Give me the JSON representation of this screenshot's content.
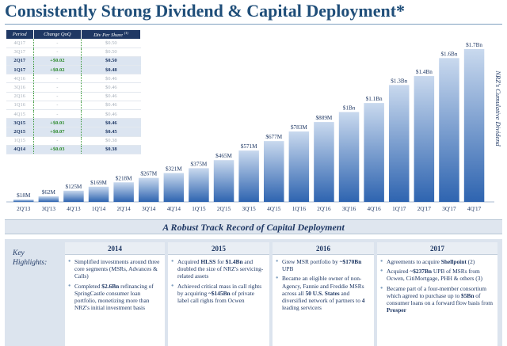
{
  "title": "Consistently Strong Dividend & Capital Deployment*",
  "dividend_table": {
    "headers": [
      "Period",
      "Change QoQ",
      "Div Per Share"
    ],
    "header_sup": "(1)",
    "rows": [
      {
        "period": "4Q17",
        "change": "-",
        "div": "$0.50",
        "highlight": false
      },
      {
        "period": "3Q17",
        "change": "-",
        "div": "$0.50",
        "highlight": false
      },
      {
        "period": "2Q17",
        "change": "+$0.02",
        "div": "$0.50",
        "highlight": true
      },
      {
        "period": "1Q17",
        "change": "+$0.02",
        "div": "$0.48",
        "highlight": true
      },
      {
        "period": "4Q16",
        "change": "-",
        "div": "$0.46",
        "highlight": false
      },
      {
        "period": "3Q16",
        "change": "-",
        "div": "$0.46",
        "highlight": false
      },
      {
        "period": "2Q16",
        "change": "-",
        "div": "$0.46",
        "highlight": false
      },
      {
        "period": "1Q16",
        "change": "-",
        "div": "$0.46",
        "highlight": false
      },
      {
        "period": "4Q15",
        "change": "-",
        "div": "$0.46",
        "highlight": false
      },
      {
        "period": "3Q15",
        "change": "+$0.01",
        "div": "$0.46",
        "highlight": true
      },
      {
        "period": "2Q15",
        "change": "+$0.07",
        "div": "$0.45",
        "highlight": true
      },
      {
        "period": "1Q15",
        "change": "-",
        "div": "$0.38",
        "highlight": false
      },
      {
        "period": "4Q14",
        "change": "+$0.03",
        "div": "$0.38",
        "highlight": true
      }
    ]
  },
  "chart_data": {
    "type": "bar",
    "categories": [
      "2Q'13",
      "3Q'13",
      "4Q'13",
      "1Q'14",
      "2Q'14",
      "3Q'14",
      "4Q'14",
      "1Q'15",
      "2Q'15",
      "3Q'15",
      "4Q'15",
      "1Q'16",
      "2Q'16",
      "3Q'16",
      "4Q'16",
      "1Q'17",
      "2Q'17",
      "3Q'17",
      "4Q'17"
    ],
    "values": [
      18,
      62,
      125,
      169,
      218,
      267,
      321,
      375,
      465,
      571,
      677,
      783,
      889,
      1000,
      1100,
      1300,
      1400,
      1600,
      1700
    ],
    "data_labels": [
      "$18M",
      "$62M",
      "$125M",
      "$169M",
      "$218M",
      "$267M",
      "$321M",
      "$375M",
      "$465M",
      "$571M",
      "$677M",
      "$783M",
      "$889M",
      "$1Bn",
      "$1.1Bn",
      "$1.3Bn",
      "$1.4Bn",
      "$1.6Bn",
      "$1.7Bn"
    ],
    "ylabel": "NRZ's Cumulative Dividend",
    "ylim": [
      0,
      1700
    ],
    "colors": {
      "bar_top": "#c9d9ee",
      "bar_bottom": "#2e64b0",
      "label": "#1f3864"
    }
  },
  "subtitle": "A Robust Track Record of Capital Deployment",
  "highlights": {
    "label_line1": "Key",
    "label_line2": "Highlights:",
    "columns": [
      {
        "year": "2014",
        "bullets": [
          [
            {
              "t": "Simplified investments around three core segments (MSRs, Advances & Calls)",
              "b": false
            }
          ],
          [
            {
              "t": "Completed ",
              "b": false
            },
            {
              "t": "$2.6Bn",
              "b": true
            },
            {
              "t": " refinancing of SpringCastle consumer loan portfolio, monetizing more than NRZ's initial investment basis",
              "b": false
            }
          ]
        ]
      },
      {
        "year": "2015",
        "bullets": [
          [
            {
              "t": "Acquired ",
              "b": false
            },
            {
              "t": "HLSS",
              "b": true
            },
            {
              "t": " for ",
              "b": false
            },
            {
              "t": "$1.4Bn",
              "b": true
            },
            {
              "t": " and doubled the size of NRZ's servicing-related assets",
              "b": false
            }
          ],
          [
            {
              "t": "Achieved critical mass in call rights by acquiring ",
              "b": false
            },
            {
              "t": "~$145Bn",
              "b": true
            },
            {
              "t": " of private label call rights from Ocwen",
              "b": false
            }
          ]
        ]
      },
      {
        "year": "2016",
        "bullets": [
          [
            {
              "t": "Grew MSR portfolio by ",
              "b": false
            },
            {
              "t": "~$170Bn",
              "b": true
            },
            {
              "t": " UPB",
              "b": false
            }
          ],
          [
            {
              "t": "Became an eligible owner of non-Agency, Fannie and Freddie MSRs across all ",
              "b": false
            },
            {
              "t": "50 U.S. States",
              "b": true
            },
            {
              "t": " and diversified network of partners to ",
              "b": false
            },
            {
              "t": "4",
              "b": true
            },
            {
              "t": " leading servicers",
              "b": false
            }
          ]
        ]
      },
      {
        "year": "2017",
        "bullets": [
          [
            {
              "t": "Agreements to acquire ",
              "b": false
            },
            {
              "t": "Shellpoint",
              "b": true
            },
            {
              "t": " (2)",
              "b": false
            }
          ],
          [
            {
              "t": "Acquired ",
              "b": false
            },
            {
              "t": "~$237Bn",
              "b": true
            },
            {
              "t": " UPB of MSRs from Ocwen, CitiMortgage, PHH & others ",
              "b": false
            },
            {
              "t": "(3)",
              "b": false
            }
          ],
          [
            {
              "t": "Became part of a four-member consortium which agreed to purchase up to ",
              "b": false
            },
            {
              "t": "$5Bn",
              "b": true
            },
            {
              "t": " of consumer loans on a forward flow basis from ",
              "b": false
            },
            {
              "t": "Prosper",
              "b": true
            }
          ]
        ]
      }
    ]
  }
}
